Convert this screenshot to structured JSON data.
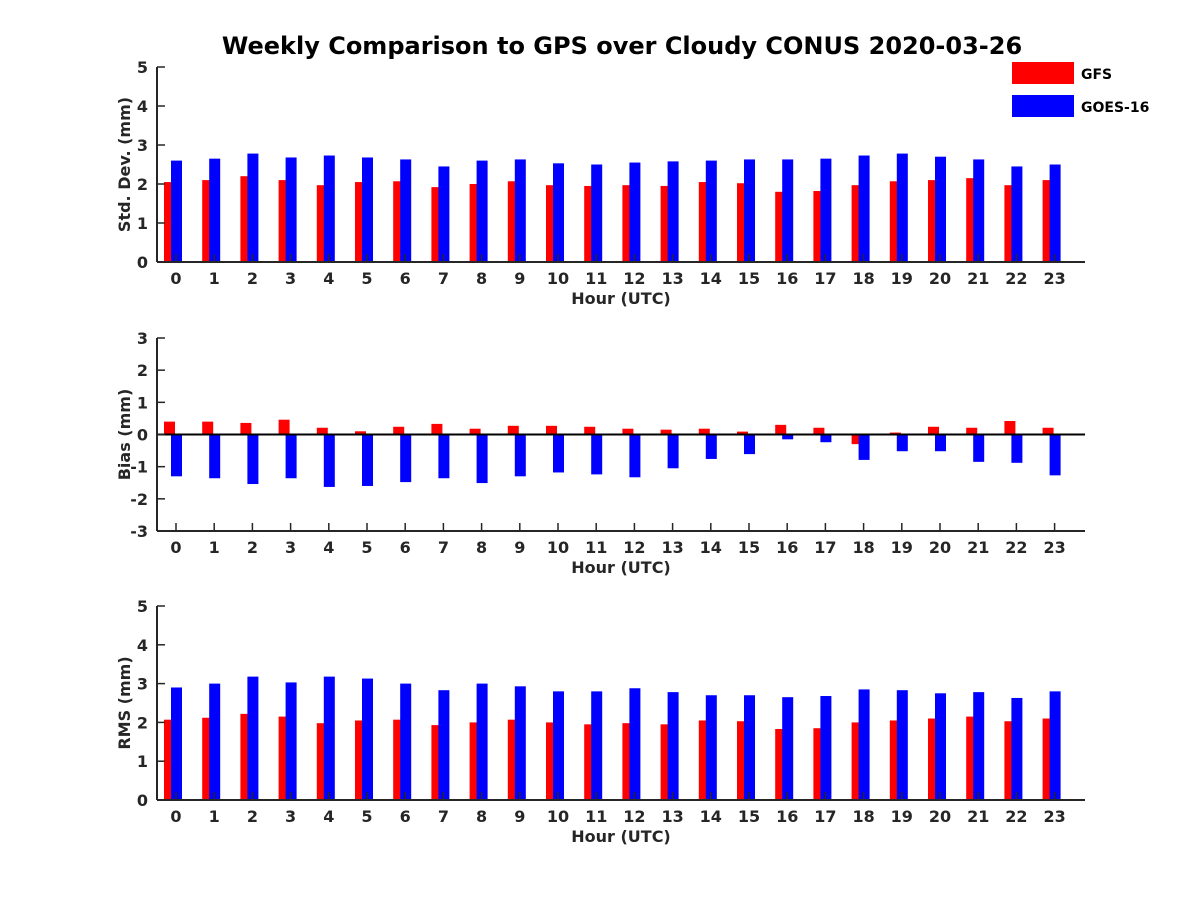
{
  "title": "Weekly Comparison to GPS over Cloudy CONUS 2020-03-26",
  "legend": [
    {
      "label": "GFS",
      "color": "#ff0000"
    },
    {
      "label": "GOES-16",
      "color": "#0000ff"
    }
  ],
  "chart_data": [
    {
      "type": "bar",
      "xlabel": "Hour (UTC)",
      "ylabel": "Std. Dev. (mm)",
      "ylim": [
        0,
        5
      ],
      "yticks": [
        0,
        1,
        2,
        3,
        4,
        5
      ],
      "categories": [
        "0",
        "1",
        "2",
        "3",
        "4",
        "5",
        "6",
        "7",
        "8",
        "9",
        "10",
        "11",
        "12",
        "13",
        "14",
        "15",
        "16",
        "17",
        "18",
        "19",
        "20",
        "21",
        "22",
        "23"
      ],
      "series": [
        {
          "name": "GFS",
          "color": "#ff0000",
          "values": [
            2.05,
            2.1,
            2.2,
            2.1,
            1.97,
            2.05,
            2.07,
            1.92,
            2.0,
            2.07,
            1.97,
            1.95,
            1.97,
            1.95,
            2.05,
            2.02,
            1.8,
            1.82,
            1.97,
            2.07,
            2.1,
            2.15,
            1.97,
            2.1
          ]
        },
        {
          "name": "GOES-16",
          "color": "#0000ff",
          "values": [
            2.6,
            2.65,
            2.78,
            2.68,
            2.73,
            2.68,
            2.63,
            2.45,
            2.6,
            2.63,
            2.53,
            2.5,
            2.55,
            2.58,
            2.6,
            2.63,
            2.63,
            2.65,
            2.73,
            2.78,
            2.7,
            2.63,
            2.45,
            2.5
          ]
        }
      ]
    },
    {
      "type": "bar",
      "xlabel": "Hour (UTC)",
      "ylabel": "Bias (mm)",
      "ylim": [
        -3,
        3
      ],
      "yticks": [
        -3,
        -2,
        -1,
        0,
        1,
        2,
        3
      ],
      "categories": [
        "0",
        "1",
        "2",
        "3",
        "4",
        "5",
        "6",
        "7",
        "8",
        "9",
        "10",
        "11",
        "12",
        "13",
        "14",
        "15",
        "16",
        "17",
        "18",
        "19",
        "20",
        "21",
        "22",
        "23"
      ],
      "series": [
        {
          "name": "GFS",
          "color": "#ff0000",
          "values": [
            0.4,
            0.4,
            0.36,
            0.46,
            0.21,
            0.1,
            0.24,
            0.33,
            0.18,
            0.27,
            0.27,
            0.24,
            0.18,
            0.15,
            0.18,
            0.09,
            0.3,
            0.21,
            -0.3,
            0.06,
            0.24,
            0.21,
            0.42,
            0.21
          ]
        },
        {
          "name": "GOES-16",
          "color": "#0000ff",
          "values": [
            -1.3,
            -1.36,
            -1.54,
            -1.36,
            -1.63,
            -1.6,
            -1.48,
            -1.36,
            -1.51,
            -1.3,
            -1.18,
            -1.24,
            -1.33,
            -1.05,
            -0.76,
            -0.61,
            -0.15,
            -0.24,
            -0.79,
            -0.52,
            -0.52,
            -0.85,
            -0.88,
            -1.27
          ]
        }
      ]
    },
    {
      "type": "bar",
      "xlabel": "Hour (UTC)",
      "ylabel": "RMS (mm)",
      "ylim": [
        0,
        5
      ],
      "yticks": [
        0,
        1,
        2,
        3,
        4,
        5
      ],
      "categories": [
        "0",
        "1",
        "2",
        "3",
        "4",
        "5",
        "6",
        "7",
        "8",
        "9",
        "10",
        "11",
        "12",
        "13",
        "14",
        "15",
        "16",
        "17",
        "18",
        "19",
        "20",
        "21",
        "22",
        "23"
      ],
      "series": [
        {
          "name": "GFS",
          "color": "#ff0000",
          "values": [
            2.07,
            2.12,
            2.22,
            2.15,
            1.98,
            2.05,
            2.07,
            1.93,
            2.0,
            2.07,
            2.0,
            1.95,
            1.98,
            1.95,
            2.05,
            2.03,
            1.83,
            1.85,
            2.0,
            2.05,
            2.1,
            2.15,
            2.03,
            2.1
          ]
        },
        {
          "name": "GOES-16",
          "color": "#0000ff",
          "values": [
            2.9,
            3.0,
            3.18,
            3.03,
            3.18,
            3.13,
            3.0,
            2.83,
            3.0,
            2.93,
            2.8,
            2.8,
            2.88,
            2.78,
            2.7,
            2.7,
            2.65,
            2.68,
            2.85,
            2.83,
            2.75,
            2.78,
            2.63,
            2.8
          ]
        }
      ]
    }
  ]
}
